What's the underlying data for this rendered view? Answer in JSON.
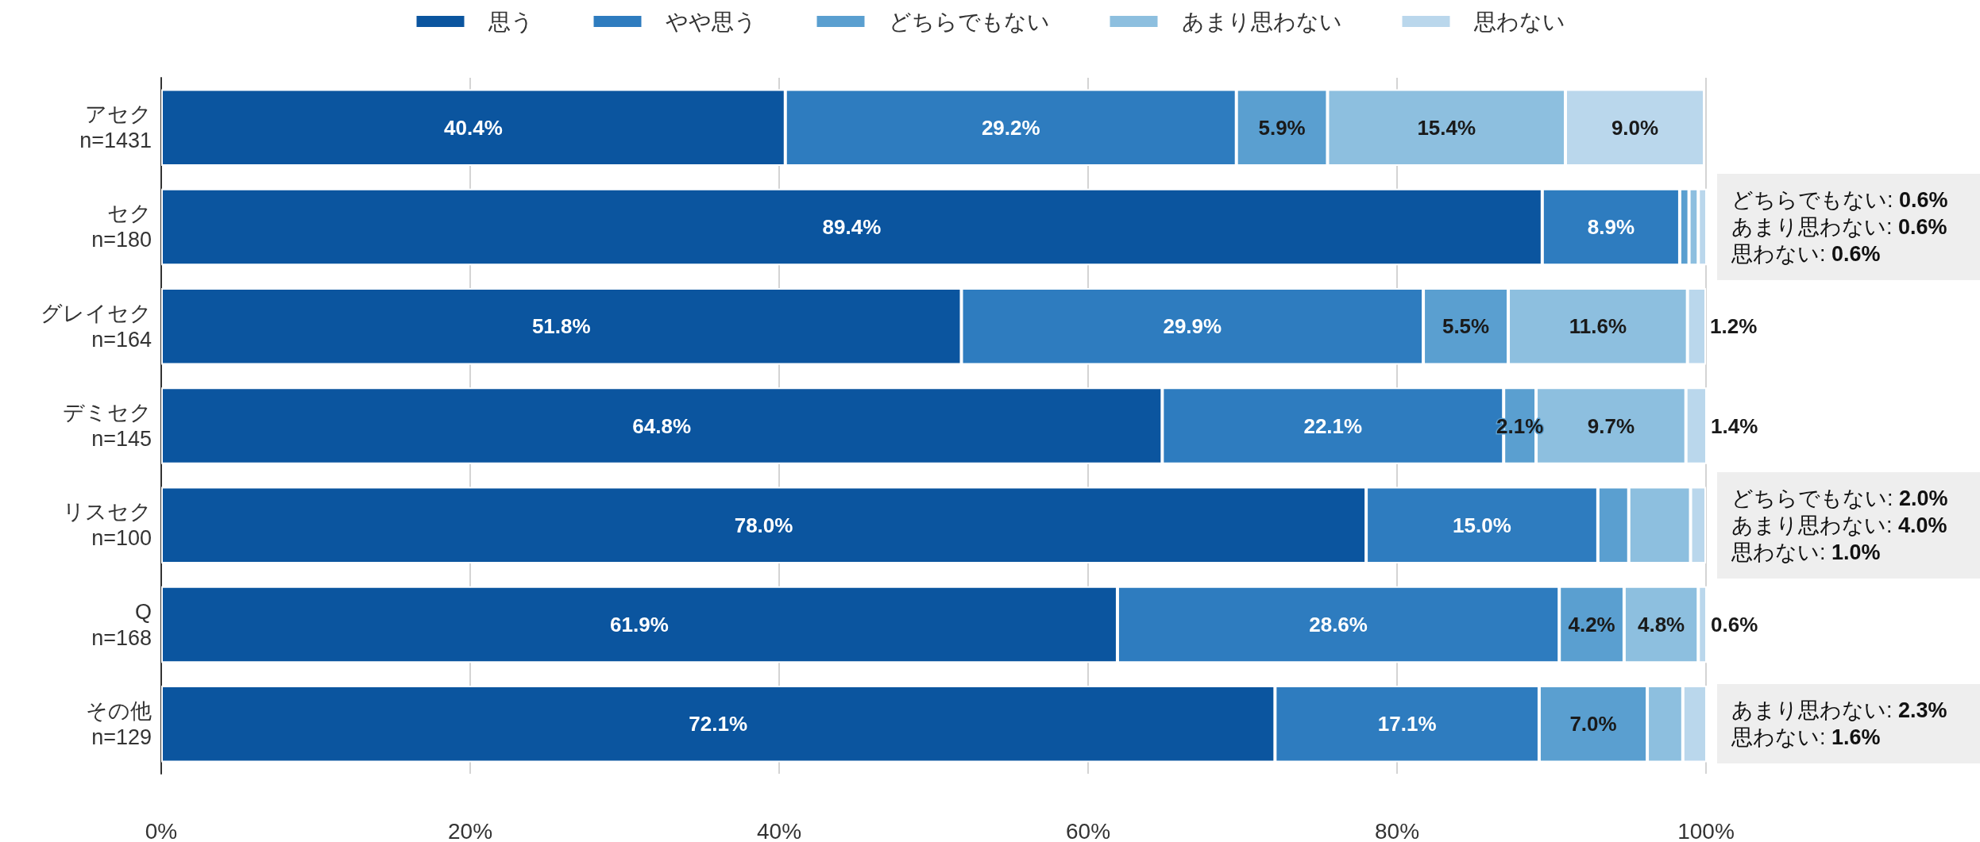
{
  "chart_data": {
    "type": "bar",
    "orientation": "horizontal",
    "stacked": true,
    "categories": [
      "アセク\nn=1431",
      "セク\nn=180",
      "グレイセク\nn=164",
      "デミセク\nn=145",
      "リスセク\nn=100",
      "Q\nn=168",
      "その他\nn=129"
    ],
    "series": [
      {
        "name": "思う",
        "color": "#0b559f",
        "values": [
          40.4,
          89.4,
          51.8,
          64.8,
          78.0,
          61.9,
          72.1
        ],
        "value_labels": [
          "40.4%",
          "89.4%",
          "51.8%",
          "64.8%",
          "78.0%",
          "61.9%",
          "72.1%"
        ]
      },
      {
        "name": "やや思う",
        "color": "#2e7cbf",
        "values": [
          29.2,
          8.9,
          29.9,
          22.1,
          15.0,
          28.6,
          17.1
        ],
        "value_labels": [
          "29.2%",
          "8.9%",
          "29.9%",
          "22.1%",
          "15.0%",
          "28.6%",
          "17.1%"
        ]
      },
      {
        "name": "どちらでもない",
        "color": "#5a9fd0",
        "values": [
          5.9,
          0.6,
          5.5,
          2.1,
          2.0,
          4.2,
          7.0
        ],
        "value_labels": [
          "5.9%",
          null,
          "5.5%",
          "2.1%",
          null,
          "4.2%",
          "7.0%"
        ]
      },
      {
        "name": "あまり思わない",
        "color": "#8dbfdf",
        "values": [
          15.4,
          0.6,
          11.6,
          9.7,
          4.0,
          4.8,
          2.3
        ],
        "value_labels": [
          "15.4%",
          null,
          "11.6%",
          "9.7%",
          null,
          "4.8%",
          null
        ]
      },
      {
        "name": "思わない",
        "color": "#bad7ec",
        "values": [
          9.0,
          0.6,
          1.2,
          1.4,
          1.0,
          0.6,
          1.6
        ],
        "value_labels": [
          "9.0%",
          null,
          "1.2%",
          "1.4%",
          null,
          "0.6%",
          null
        ]
      }
    ],
    "xlim": [
      0,
      100
    ],
    "xticks": [
      {
        "value": 0,
        "label": "0%"
      },
      {
        "value": 20,
        "label": "20%"
      },
      {
        "value": 40,
        "label": "40%"
      },
      {
        "value": 60,
        "label": "60%"
      },
      {
        "value": 80,
        "label": "80%"
      },
      {
        "value": 100,
        "label": "100%"
      }
    ],
    "grid": "x",
    "legend": "top",
    "annotations": [
      "どちらでもない: 0.6%\nあまり思わない: 0.6%\n思わない: 0.6%",
      "どちらでもない: 2.0%\nあまり思わない: 4.0%\n思わない: 1.0%",
      "あまり思わない: 2.3%\n思わない: 1.6%"
    ]
  }
}
